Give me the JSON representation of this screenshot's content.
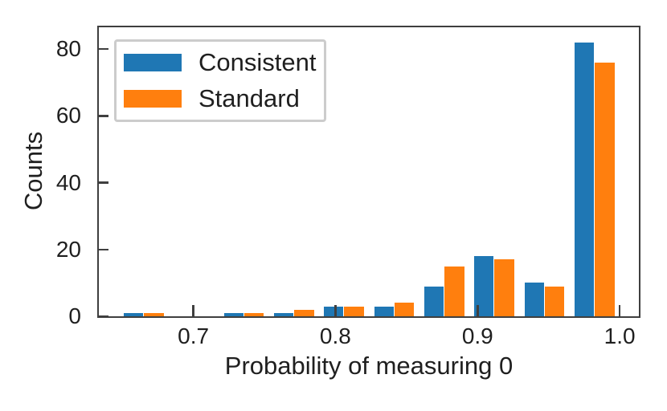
{
  "figure": {
    "background": "#ffffff",
    "spine_color": "#3f3f3f",
    "text_color": "#1f1f1f",
    "legend_border_color": "#cccccc"
  },
  "chart_data": {
    "type": "bar",
    "subtype": "histogram",
    "title": "",
    "xlabel": "Probability of measuring 0",
    "ylabel": "Counts",
    "bin_edges": [
      0.6475,
      0.68275,
      0.718,
      0.75325,
      0.7885,
      0.82375,
      0.859,
      0.89425,
      0.9295,
      0.96475,
      1.0
    ],
    "series": [
      {
        "name": "Consistent",
        "color": "#1f77b4",
        "values": [
          1,
          0,
          1,
          1,
          3,
          3,
          9,
          18,
          10,
          82
        ]
      },
      {
        "name": "Standard",
        "color": "#ff7f0e",
        "values": [
          1,
          0,
          1,
          2,
          3,
          4,
          15,
          17,
          9,
          76
        ]
      }
    ],
    "xticks": [
      0.7,
      0.8,
      0.9,
      1.0
    ],
    "xtick_labels": [
      "0.7",
      "0.8",
      "0.9",
      "1.0"
    ],
    "yticks": [
      0,
      20,
      40,
      60,
      80
    ],
    "ytick_labels": [
      "0",
      "20",
      "40",
      "60",
      "80"
    ],
    "xlim": [
      0.6335,
      1.0135
    ],
    "ylim": [
      0,
      86.5
    ],
    "grid": false,
    "legend": {
      "position": "upper-left",
      "entries": [
        "Consistent",
        "Standard"
      ]
    }
  }
}
